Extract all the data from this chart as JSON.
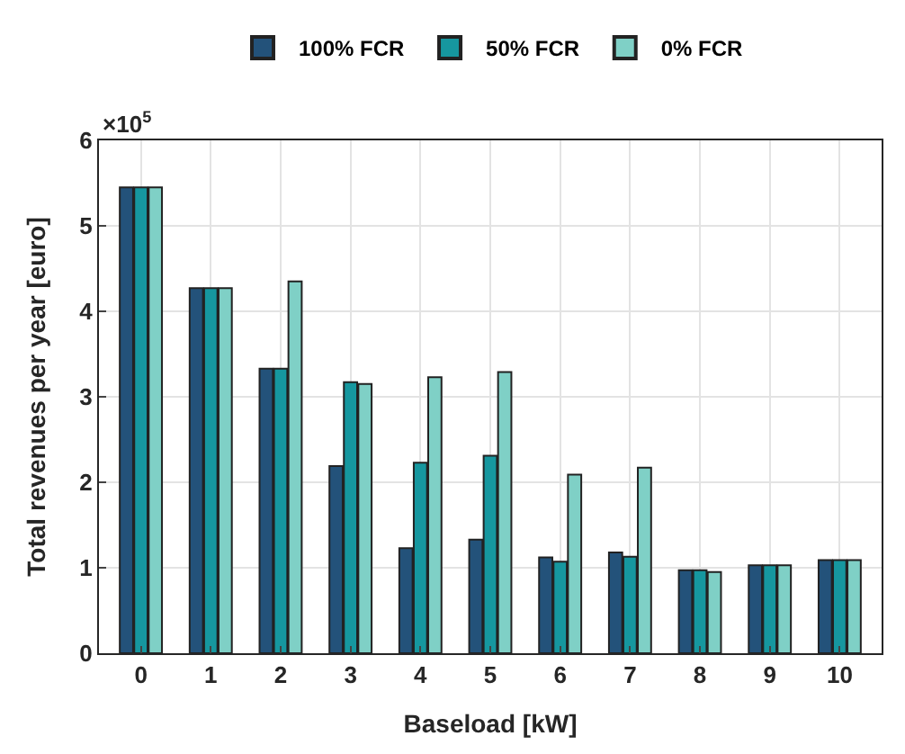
{
  "chart_data": {
    "type": "bar",
    "xlabel": "Baseload [kW]",
    "ylabel": "Total revenues per year [euro]",
    "categories": [
      "0",
      "1",
      "2",
      "3",
      "4",
      "5",
      "6",
      "7",
      "8",
      "9",
      "10"
    ],
    "series": [
      {
        "name": "100% FCR",
        "color": "#23527a",
        "values": [
          5.45,
          4.27,
          3.33,
          2.19,
          1.23,
          1.33,
          1.12,
          1.18,
          0.97,
          1.03,
          1.09
        ]
      },
      {
        "name": "50% FCR",
        "color": "#16979f",
        "values": [
          5.45,
          4.27,
          3.33,
          3.17,
          2.23,
          2.31,
          1.07,
          1.13,
          0.97,
          1.03,
          1.09
        ]
      },
      {
        "name": "0% FCR",
        "color": "#7fd0c6",
        "values": [
          5.45,
          4.27,
          4.35,
          3.15,
          3.23,
          3.29,
          2.09,
          2.17,
          0.95,
          1.03,
          1.09
        ]
      }
    ],
    "ylim": [
      0,
      6
    ],
    "yticks": [
      0,
      1,
      2,
      3,
      4,
      5,
      6
    ],
    "annotations": [
      "×10$^{5}$"
    ],
    "grid": true,
    "legend": "top"
  }
}
